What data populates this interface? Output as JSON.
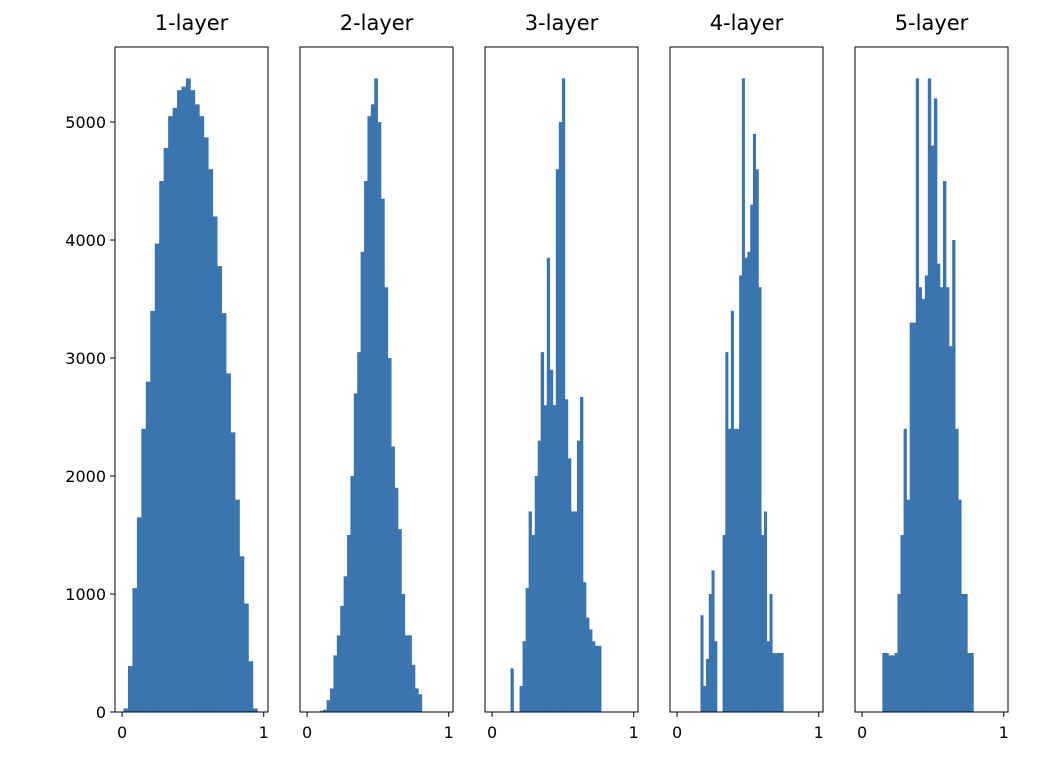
{
  "chart_data": [
    {
      "type": "histogram",
      "title": "1-layer",
      "color": "#3b75af",
      "xlim": [
        -0.05,
        1.03
      ],
      "xticks": [
        0,
        1
      ],
      "ylim": [
        0,
        5636
      ],
      "yticks": [
        0,
        1000,
        2000,
        3000,
        4000,
        5000
      ],
      "bins": [
        0.01,
        0.0415,
        0.073,
        0.1045,
        0.136,
        0.1675,
        0.199,
        0.2305,
        0.262,
        0.2935,
        0.325,
        0.3565,
        0.388,
        0.4195,
        0.451,
        0.4825,
        0.514,
        0.5455,
        0.577,
        0.6085,
        0.64,
        0.6715,
        0.703,
        0.7345,
        0.766,
        0.7975,
        0.829,
        0.8605,
        0.892,
        0.9235,
        0.955
      ],
      "values": [
        30,
        390,
        1050,
        1650,
        2400,
        2800,
        3400,
        3970,
        4500,
        4780,
        5050,
        5120,
        5270,
        5300,
        5370,
        5270,
        5150,
        5050,
        4870,
        4600,
        4200,
        3780,
        3380,
        2870,
        2370,
        1800,
        1320,
        920,
        430,
        30
      ]
    },
    {
      "type": "histogram",
      "title": "2-layer",
      "color": "#3b75af",
      "xlim": [
        -0.05,
        1.03
      ],
      "xticks": [
        0,
        1
      ],
      "ylim": [
        0,
        5636
      ],
      "bins": [
        0.09,
        0.114,
        0.138,
        0.162,
        0.186,
        0.21,
        0.234,
        0.258,
        0.282,
        0.306,
        0.33,
        0.354,
        0.378,
        0.402,
        0.426,
        0.45,
        0.474,
        0.498,
        0.522,
        0.546,
        0.57,
        0.594,
        0.618,
        0.642,
        0.666,
        0.69,
        0.714,
        0.738,
        0.762,
        0.786,
        0.81
      ],
      "values": [
        10,
        20,
        100,
        200,
        480,
        650,
        900,
        1150,
        1500,
        2000,
        2700,
        3050,
        3900,
        4500,
        5050,
        5150,
        5370,
        5000,
        4350,
        3600,
        3000,
        2250,
        1900,
        1550,
        1000,
        650,
        650,
        400,
        200,
        150
      ]
    },
    {
      "type": "histogram",
      "title": "3-layer",
      "color": "#3b75af",
      "xlim": [
        -0.05,
        1.03
      ],
      "xticks": [
        0,
        1
      ],
      "ylim": [
        0,
        5636
      ],
      "bins": [
        0.13,
        0.151,
        0.173,
        0.194,
        0.215,
        0.237,
        0.258,
        0.279,
        0.301,
        0.322,
        0.343,
        0.365,
        0.386,
        0.407,
        0.429,
        0.45,
        0.471,
        0.493,
        0.514,
        0.535,
        0.557,
        0.578,
        0.599,
        0.621,
        0.642,
        0.663,
        0.685,
        0.706,
        0.727,
        0.749,
        0.77
      ],
      "values": [
        370,
        0,
        0,
        220,
        600,
        1050,
        1700,
        1500,
        2000,
        2300,
        3050,
        2600,
        3850,
        2900,
        2600,
        4600,
        5000,
        5370,
        2650,
        2150,
        1700,
        1700,
        2300,
        2670,
        1100,
        800,
        700,
        600,
        560,
        560
      ]
    },
    {
      "type": "histogram",
      "title": "4-layer",
      "color": "#3b75af",
      "xlim": [
        -0.05,
        1.03
      ],
      "xticks": [
        0,
        1
      ],
      "ylim": [
        0,
        5636
      ],
      "bins": [
        0.165,
        0.1845,
        0.204,
        0.2235,
        0.243,
        0.2625,
        0.282,
        0.3015,
        0.321,
        0.3405,
        0.36,
        0.3795,
        0.399,
        0.4185,
        0.438,
        0.4575,
        0.477,
        0.4965,
        0.516,
        0.5355,
        0.555,
        0.5745,
        0.594,
        0.6135,
        0.633,
        0.6525,
        0.672,
        0.6915,
        0.711,
        0.7305,
        0.75
      ],
      "values": [
        820,
        220,
        450,
        1000,
        1200,
        600,
        0,
        0,
        1500,
        3050,
        2400,
        3400,
        2400,
        2400,
        3700,
        5370,
        3850,
        3900,
        4300,
        4900,
        4600,
        3600,
        1500,
        1700,
        600,
        1000,
        500,
        500,
        500,
        500
      ]
    },
    {
      "type": "histogram",
      "title": "5-layer",
      "color": "#3b75af",
      "xlim": [
        -0.05,
        1.03
      ],
      "xticks": [
        0,
        1
      ],
      "ylim": [
        0,
        5636
      ],
      "bins": [
        0.143,
        0.164,
        0.186,
        0.207,
        0.229,
        0.25,
        0.271,
        0.293,
        0.314,
        0.336,
        0.357,
        0.379,
        0.4,
        0.421,
        0.443,
        0.464,
        0.486,
        0.507,
        0.529,
        0.55,
        0.571,
        0.593,
        0.614,
        0.636,
        0.657,
        0.679,
        0.7,
        0.721,
        0.743,
        0.764,
        0.786
      ],
      "values": [
        500,
        500,
        480,
        480,
        500,
        1000,
        1500,
        2400,
        1800,
        3300,
        3300,
        5370,
        3600,
        3500,
        3700,
        5370,
        4800,
        5200,
        3800,
        3600,
        4500,
        3600,
        3100,
        4000,
        2400,
        1800,
        1000,
        1000,
        500,
        500
      ]
    }
  ]
}
